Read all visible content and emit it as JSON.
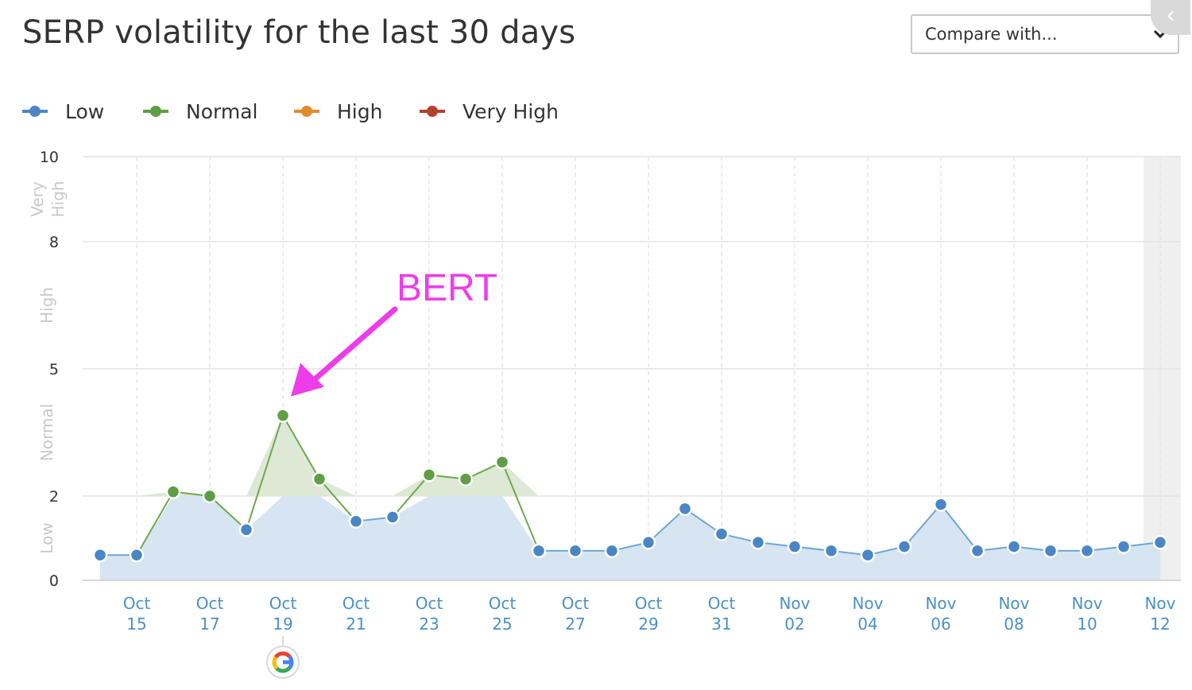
{
  "header": {
    "title": "SERP volatility for the last 30 days",
    "compare_placeholder": "Compare with...",
    "close_label": "‹"
  },
  "legend": [
    {
      "label": "Low",
      "color": "#4a86c5"
    },
    {
      "label": "Normal",
      "color": "#5f9e45"
    },
    {
      "label": "High",
      "color": "#e28b2d"
    },
    {
      "label": "Very High",
      "color": "#b3402f"
    }
  ],
  "chart_data": {
    "type": "area",
    "title": "SERP volatility for the last 30 days",
    "xlabel": "",
    "ylabel": "",
    "ylim": [
      0,
      10
    ],
    "y_ticks": [
      0,
      2,
      5,
      8,
      10
    ],
    "bands": [
      {
        "label": "Low",
        "from": 0,
        "to": 2
      },
      {
        "label": "Normal",
        "from": 2,
        "to": 5
      },
      {
        "label": "High",
        "from": 5,
        "to": 8
      },
      {
        "label": "Very High",
        "from": 8,
        "to": 10
      }
    ],
    "x_labels": [
      [
        "Oct",
        "15"
      ],
      [
        "Oct",
        "17"
      ],
      [
        "Oct",
        "19"
      ],
      [
        "Oct",
        "21"
      ],
      [
        "Oct",
        "23"
      ],
      [
        "Oct",
        "25"
      ],
      [
        "Oct",
        "27"
      ],
      [
        "Oct",
        "29"
      ],
      [
        "Oct",
        "31"
      ],
      [
        "Nov",
        "02"
      ],
      [
        "Nov",
        "04"
      ],
      [
        "Nov",
        "06"
      ],
      [
        "Nov",
        "08"
      ],
      [
        "Nov",
        "10"
      ],
      [
        "Nov",
        "12"
      ]
    ],
    "dates": [
      "Oct 14",
      "Oct 15",
      "Oct 16",
      "Oct 17",
      "Oct 18",
      "Oct 19",
      "Oct 20",
      "Oct 21",
      "Oct 22",
      "Oct 23",
      "Oct 24",
      "Oct 25",
      "Oct 26",
      "Oct 27",
      "Oct 28",
      "Oct 29",
      "Oct 30",
      "Oct 31",
      "Nov 01",
      "Nov 02",
      "Nov 03",
      "Nov 04",
      "Nov 05",
      "Nov 06",
      "Nov 07",
      "Nov 08",
      "Nov 09",
      "Nov 10",
      "Nov 11",
      "Nov 12"
    ],
    "values": [
      0.6,
      0.6,
      2.1,
      2.0,
      1.2,
      3.9,
      2.4,
      1.4,
      1.5,
      2.5,
      2.4,
      2.8,
      0.7,
      0.7,
      0.7,
      0.9,
      1.7,
      1.1,
      0.9,
      0.8,
      0.7,
      0.6,
      0.8,
      1.8,
      0.7,
      0.8,
      0.7,
      0.7,
      0.8,
      0.9
    ],
    "grid": true,
    "legend_position": "top-left",
    "annotations": [
      {
        "text": "BERT",
        "date": "Oct 19",
        "value": 3.9
      },
      {
        "icon": "google-icon",
        "date": "Oct 19"
      }
    ],
    "highlighted_period": [
      "Nov 12",
      "Nov 12"
    ]
  }
}
